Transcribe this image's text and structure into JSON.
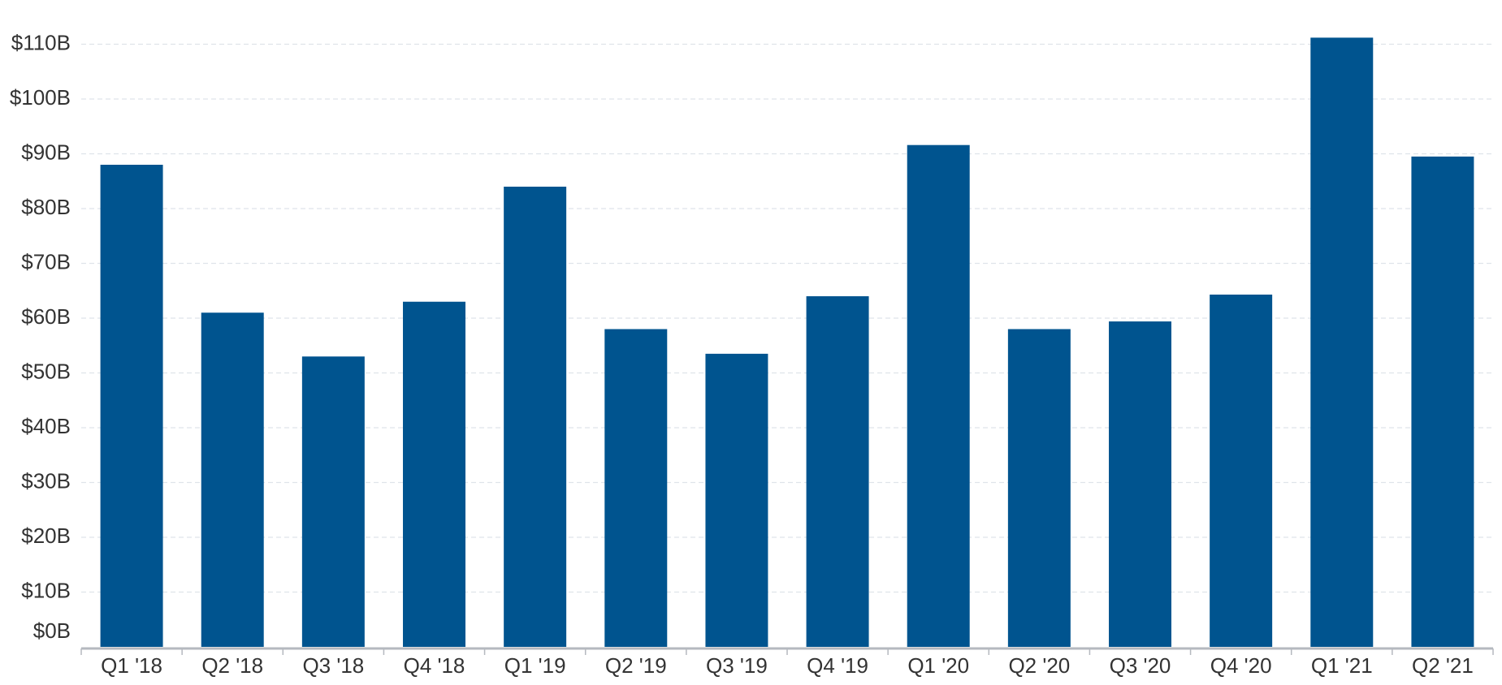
{
  "chart_data": {
    "type": "bar",
    "categories": [
      "Q1 '18",
      "Q2 '18",
      "Q3 '18",
      "Q4 '18",
      "Q1 '19",
      "Q2 '19",
      "Q3 '19",
      "Q4 '19",
      "Q1 '20",
      "Q2 '20",
      "Q3 '20",
      "Q4 '20",
      "Q1 '21",
      "Q2 '21"
    ],
    "values": [
      88,
      61,
      53,
      63,
      84,
      58,
      53.5,
      64,
      91.6,
      58,
      59.4,
      64.3,
      111.2,
      89.5
    ],
    "color": "#00548f",
    "ylim": [
      0,
      112
    ],
    "yticks": [
      {
        "value": 0,
        "label": "$0B"
      },
      {
        "value": 10,
        "label": "$10B"
      },
      {
        "value": 20,
        "label": "$20B"
      },
      {
        "value": 30,
        "label": "$30B"
      },
      {
        "value": 40,
        "label": "$40B"
      },
      {
        "value": 50,
        "label": "$50B"
      },
      {
        "value": 60,
        "label": "$60B"
      },
      {
        "value": 70,
        "label": "$70B"
      },
      {
        "value": 80,
        "label": "$80B"
      },
      {
        "value": 90,
        "label": "$90B"
      },
      {
        "value": 100,
        "label": "$100B"
      },
      {
        "value": 110,
        "label": "$110B"
      }
    ],
    "grid": true
  }
}
